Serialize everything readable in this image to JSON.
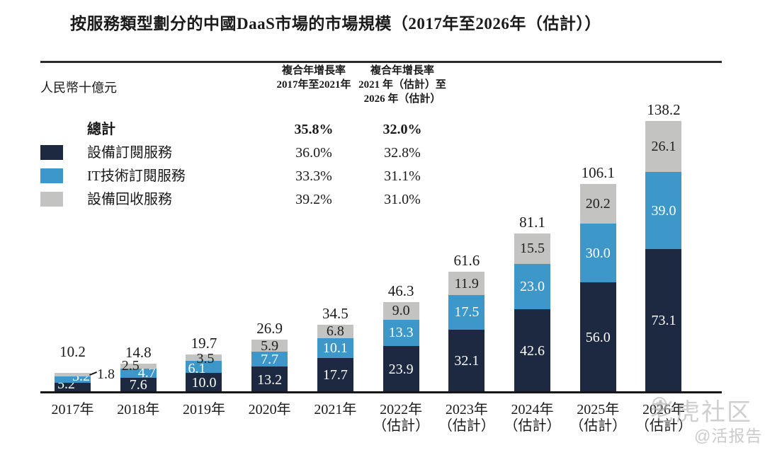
{
  "title": "按服務類型劃分的中國DaaS市場的市場規模（2017年至2026年（估計））",
  "unit_label": "人民幣十億元",
  "cagr_table": {
    "col1_header": [
      "複合年增長率",
      "2017年至2021年"
    ],
    "col2_header": [
      "複合年增長率",
      "2021 年（估計）至",
      "2026 年（估計）"
    ],
    "rows": [
      {
        "label": "總計",
        "swatch": null,
        "bold": true,
        "cagr_2017_2021": "35.8%",
        "cagr_2021_2026": "32.0%"
      },
      {
        "label": "設備訂閱服務",
        "swatch": "#1c2941",
        "bold": false,
        "cagr_2017_2021": "36.0%",
        "cagr_2021_2026": "32.8%"
      },
      {
        "label": "IT技術訂閱服務",
        "swatch": "#3d97c9",
        "bold": false,
        "cagr_2017_2021": "33.3%",
        "cagr_2021_2026": "31.1%"
      },
      {
        "label": "設備回收服務",
        "swatch": "#c3c3c2",
        "bold": false,
        "cagr_2017_2021": "39.2%",
        "cagr_2021_2026": "31.0%"
      }
    ]
  },
  "chart_data": {
    "type": "bar",
    "stacked": true,
    "title": "按服務類型劃分的中國DaaS市場的市場規模（2017年至2026年（估計））",
    "ylabel": "人民幣十億元",
    "ylim": [
      0,
      145
    ],
    "grid": false,
    "legend_position": "top-left",
    "categories": [
      "2017年",
      "2018年",
      "2019年",
      "2020年",
      "2021年",
      "2022年",
      "2023年",
      "2024年",
      "2025年",
      "2026年"
    ],
    "estimate_note": "（估計）",
    "estimate_from_index": 5,
    "series": [
      {
        "name": "設備訂閱服務",
        "color": "#1c2941",
        "label_color": "#ffffff",
        "values": [
          5.2,
          7.6,
          10.0,
          13.2,
          17.7,
          23.9,
          32.1,
          42.6,
          56.0,
          73.1
        ]
      },
      {
        "name": "IT技術訂閱服務",
        "color": "#3d97c9",
        "label_color": "#ffffff",
        "values": [
          3.2,
          4.7,
          6.1,
          7.7,
          10.1,
          13.3,
          17.5,
          23.0,
          30.0,
          39.0
        ]
      },
      {
        "name": "設備回收服務",
        "color": "#c3c3c2",
        "label_color": "#222222",
        "values": [
          1.8,
          2.5,
          3.5,
          5.9,
          6.8,
          9.0,
          11.9,
          15.5,
          20.2,
          26.1
        ]
      }
    ],
    "totals": [
      10.2,
      14.8,
      19.7,
      26.9,
      34.5,
      46.3,
      61.6,
      81.1,
      106.1,
      138.2
    ]
  },
  "watermark": {
    "brand": "老虎社区",
    "handle": "@活报告",
    "logo_glyph": "虎"
  }
}
